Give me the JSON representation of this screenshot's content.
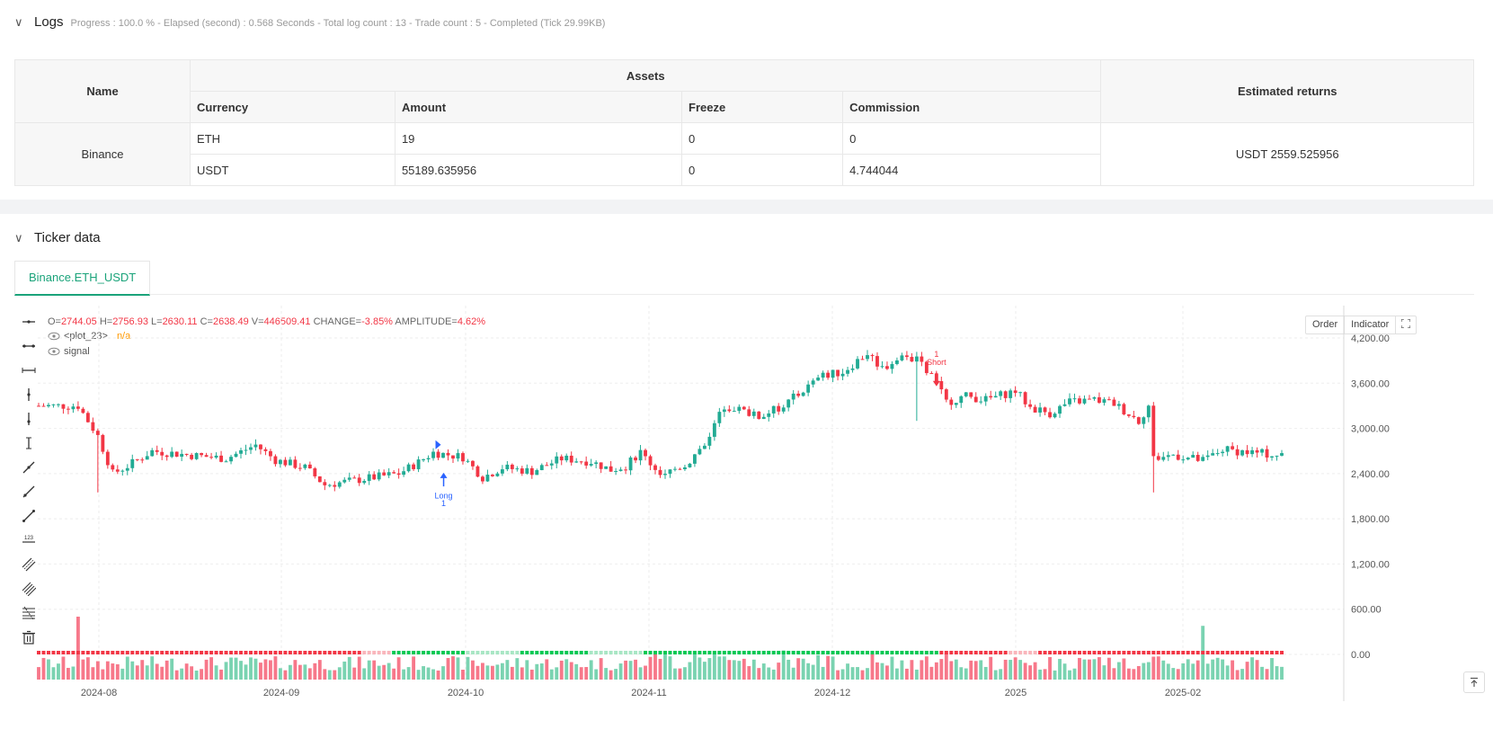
{
  "logs": {
    "title": "Logs",
    "meta": "Progress : 100.0 % - Elapsed (second) : 0.568  Seconds - Total log count : 13 - Trade count : 5 - Completed (Tick 29.99KB)"
  },
  "assets_table": {
    "col_name": "Name",
    "col_assets": "Assets",
    "col_returns": "Estimated returns",
    "sub_headers": [
      "Currency",
      "Amount",
      "Freeze",
      "Commission"
    ],
    "exchange": "Binance",
    "rows": [
      {
        "currency": "ETH",
        "amount": "19",
        "freeze": "0",
        "commission": "0"
      },
      {
        "currency": "USDT",
        "amount": "55189.635956",
        "freeze": "0",
        "commission": "4.744044"
      }
    ],
    "estimated_returns": "USDT 2559.525956"
  },
  "ticker": {
    "title": "Ticker data",
    "tab_label": "Binance.ETH_USDT"
  },
  "chart_header": {
    "o_label": "O=",
    "o": "2744.05",
    "h_label": "H=",
    "h": "2756.93",
    "l_label": "L=",
    "l": "2630.11",
    "c_label": "C=",
    "c": "2638.49",
    "v_label": "V=",
    "v": "446509.41",
    "change_label": "CHANGE=",
    "change": "-3.85%",
    "amp_label": "AMPLITUDE=",
    "amp": "4.62%",
    "legend_plot": "<plot_23>",
    "legend_plot_value": "n/a",
    "legend_signal": "signal"
  },
  "chart_buttons": {
    "order": "Order",
    "indicator": "Indicator"
  },
  "chart_data": {
    "type": "candlestick",
    "x_ticks": [
      "2024-08",
      "2024-09",
      "2024-10",
      "2024-11",
      "2024-12",
      "2025",
      "2025-02"
    ],
    "y_ticks": [
      "4,200.00",
      "3,600.00",
      "3,000.00",
      "2,400.00",
      "1,800.00",
      "1,200.00",
      "600.00",
      "0.00"
    ],
    "y_values": [
      4200,
      3600,
      3000,
      2400,
      1800,
      1200,
      600,
      0
    ],
    "ylim": [
      0,
      4650
    ],
    "close_path": [
      [
        0,
        3300
      ],
      [
        8,
        3300
      ],
      [
        12,
        2900
      ],
      [
        15,
        2400
      ],
      [
        18,
        2500
      ],
      [
        23,
        2700
      ],
      [
        30,
        2650
      ],
      [
        38,
        2600
      ],
      [
        44,
        2780
      ],
      [
        48,
        2580
      ],
      [
        54,
        2480
      ],
      [
        58,
        2250
      ],
      [
        63,
        2300
      ],
      [
        68,
        2350
      ],
      [
        73,
        2400
      ],
      [
        77,
        2550
      ],
      [
        80,
        2680
      ],
      [
        86,
        2620
      ],
      [
        90,
        2350
      ],
      [
        94,
        2480
      ],
      [
        100,
        2430
      ],
      [
        106,
        2600
      ],
      [
        112,
        2560
      ],
      [
        116,
        2450
      ],
      [
        119,
        2500
      ],
      [
        122,
        2680
      ],
      [
        126,
        2400
      ],
      [
        131,
        2510
      ],
      [
        135,
        2800
      ],
      [
        139,
        3300
      ],
      [
        142,
        3250
      ],
      [
        146,
        3150
      ],
      [
        150,
        3270
      ],
      [
        154,
        3450
      ],
      [
        159,
        3700
      ],
      [
        163,
        3750
      ],
      [
        168,
        4000
      ],
      [
        171,
        3800
      ],
      [
        175,
        3950
      ],
      [
        178,
        3900
      ],
      [
        181,
        3700
      ],
      [
        184,
        3350
      ],
      [
        188,
        3430
      ],
      [
        192,
        3380
      ],
      [
        198,
        3500
      ],
      [
        201,
        3280
      ],
      [
        205,
        3200
      ],
      [
        209,
        3350
      ],
      [
        214,
        3380
      ],
      [
        218,
        3330
      ],
      [
        223,
        3100
      ],
      [
        225,
        3300
      ],
      [
        226,
        2600
      ],
      [
        230,
        2650
      ],
      [
        236,
        2570
      ],
      [
        240,
        2720
      ],
      [
        252,
        2640
      ]
    ],
    "n_candles": 253,
    "long_marker": {
      "index": 81,
      "label": "Long",
      "qty": "1"
    },
    "short_marker": {
      "index": 182,
      "label": "Short",
      "qty": "1"
    },
    "volume_spikes": [
      {
        "index": 8,
        "height": 4800
      },
      {
        "index": 184,
        "height": 2000
      },
      {
        "index": 236,
        "height": 4100
      }
    ],
    "signal_segments": [
      {
        "from": 0,
        "to": 65,
        "color": "#f23645"
      },
      {
        "from": 66,
        "to": 71,
        "color": "#f9b6bc"
      },
      {
        "from": 72,
        "to": 86,
        "color": "#00c853"
      },
      {
        "from": 87,
        "to": 97,
        "color": "#a8e6c4"
      },
      {
        "from": 98,
        "to": 111,
        "color": "#00c853"
      },
      {
        "from": 112,
        "to": 122,
        "color": "#a8e6c4"
      },
      {
        "from": 123,
        "to": 182,
        "color": "#00c853"
      },
      {
        "from": 183,
        "to": 196,
        "color": "#f23645"
      },
      {
        "from": 197,
        "to": 202,
        "color": "#f9b6bc"
      },
      {
        "from": 203,
        "to": 252,
        "color": "#f23645"
      }
    ],
    "colors": {
      "up": "#26a69a",
      "down": "#f23645",
      "up_fill": "#22ab94",
      "long": "#2962ff",
      "short": "#f23645",
      "grid": "#eeeeee"
    }
  }
}
